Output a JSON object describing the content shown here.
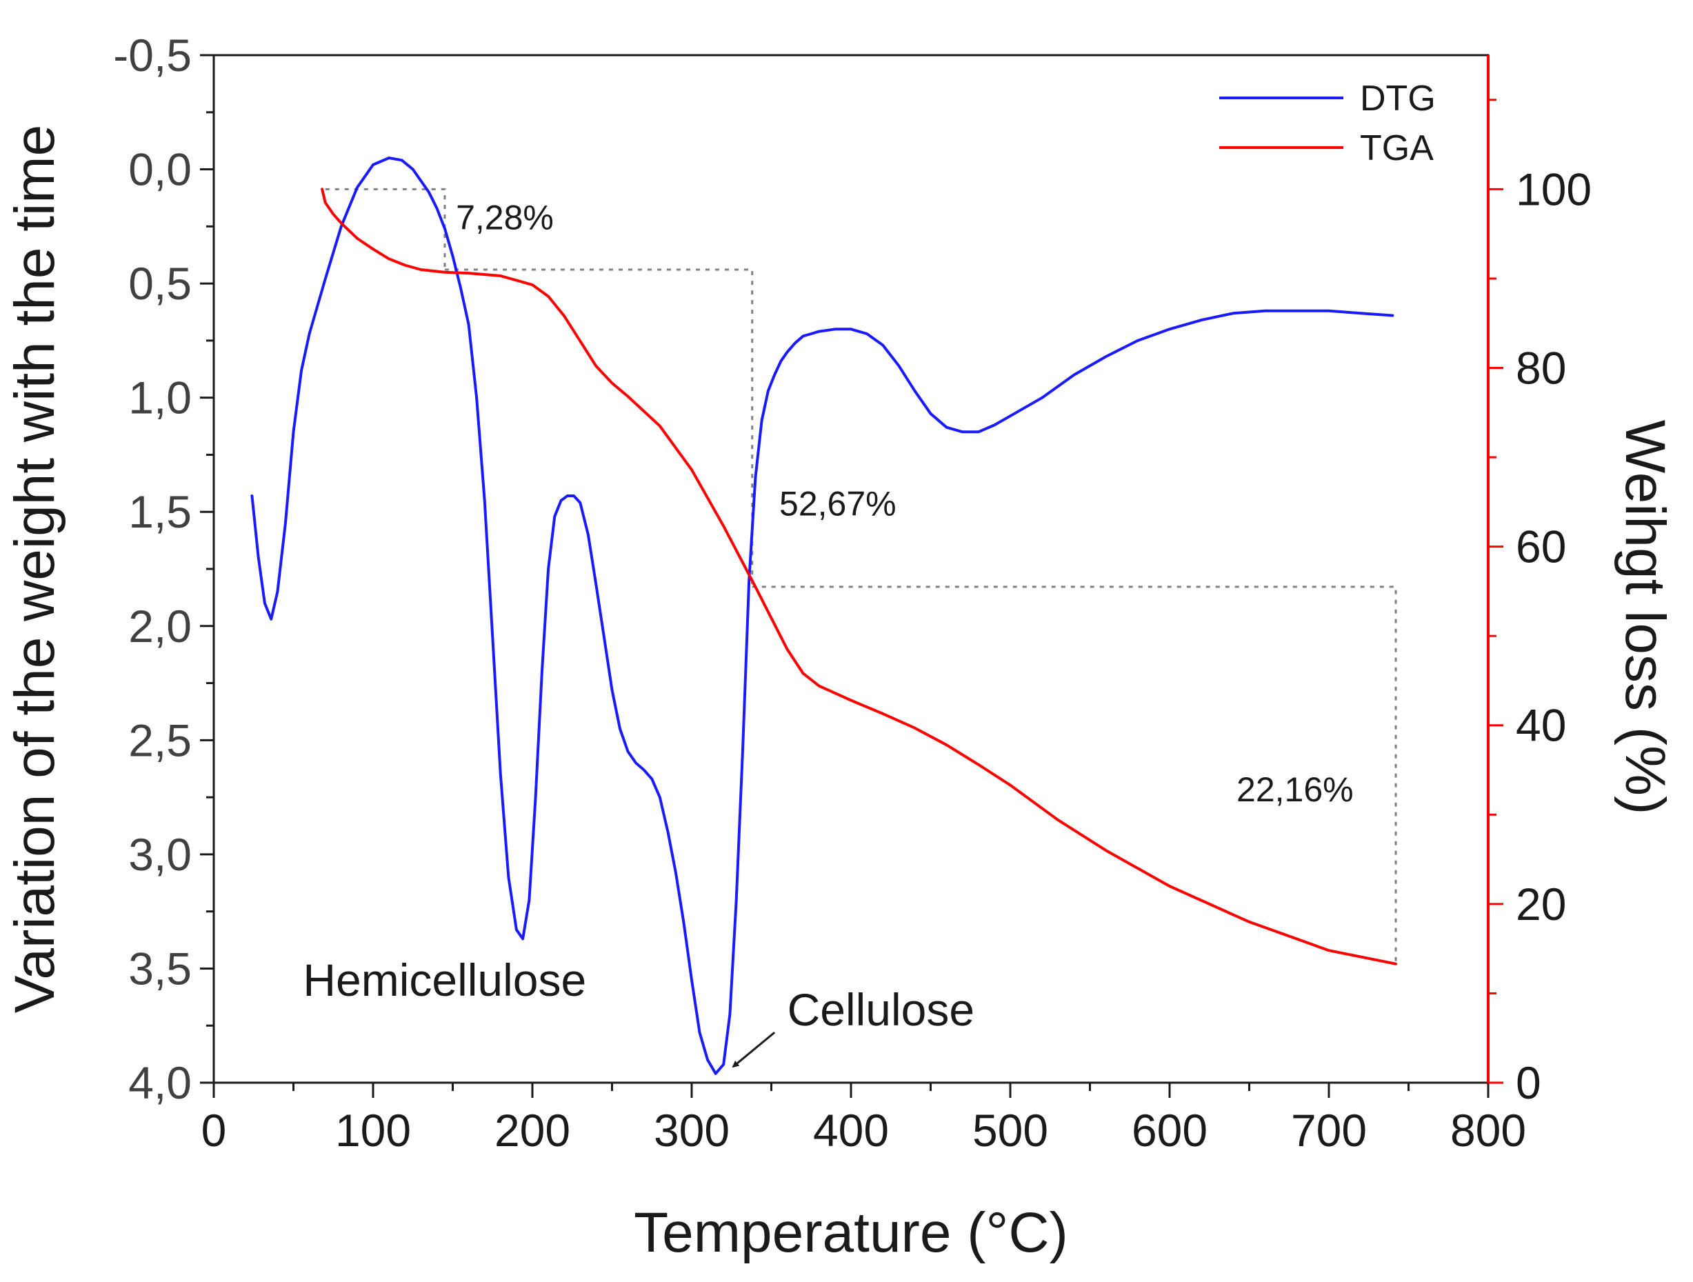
{
  "chart_data": {
    "type": "line",
    "xlabel": "Temperature (°C)",
    "ylabel_left": "Variation of the weight  with the time",
    "ylabel_right": "Weihgt loss (%)",
    "xlim": [
      0,
      800
    ],
    "ylim_left": [
      4.0,
      -0.5
    ],
    "ylim_right": [
      0,
      115
    ],
    "x_ticks": [
      0,
      100,
      200,
      300,
      400,
      500,
      600,
      700,
      800
    ],
    "x_tick_labels": [
      "0",
      "100",
      "200",
      "300",
      "400",
      "500",
      "600",
      "700",
      "800"
    ],
    "y_left_ticks": [
      -0.5,
      0.0,
      0.5,
      1.0,
      1.5,
      2.0,
      2.5,
      3.0,
      3.5,
      4.0
    ],
    "y_left_tick_labels": [
      "-0,5",
      "0,0",
      "0,5",
      "1,0",
      "1,5",
      "2,0",
      "2,5",
      "3,0",
      "3,5",
      "4,0"
    ],
    "y_right_ticks": [
      0,
      20,
      40,
      60,
      80,
      100
    ],
    "y_right_tick_labels": [
      "0",
      "20",
      "40",
      "60",
      "80",
      "100"
    ],
    "legend_position": "top-right",
    "series": [
      {
        "name": "DTG",
        "axis": "left",
        "color": "#1a1aff",
        "x": [
          24,
          28,
          32,
          36,
          40,
          45,
          50,
          55,
          60,
          70,
          80,
          90,
          100,
          110,
          118,
          125,
          130,
          135,
          140,
          145,
          150,
          155,
          160,
          165,
          170,
          175,
          180,
          185,
          190,
          194,
          198,
          202,
          206,
          210,
          214,
          218,
          222,
          226,
          230,
          235,
          240,
          245,
          250,
          255,
          260,
          265,
          270,
          275,
          280,
          285,
          290,
          295,
          300,
          305,
          310,
          315,
          320,
          324,
          328,
          332,
          336,
          340,
          344,
          348,
          352,
          356,
          360,
          365,
          370,
          375,
          380,
          390,
          400,
          410,
          420,
          430,
          440,
          450,
          460,
          470,
          480,
          490,
          500,
          520,
          540,
          560,
          580,
          600,
          620,
          640,
          660,
          680,
          700,
          720,
          740
        ],
        "y": [
          1.43,
          1.7,
          1.9,
          1.97,
          1.85,
          1.55,
          1.15,
          0.88,
          0.72,
          0.48,
          0.25,
          0.08,
          -0.02,
          -0.05,
          -0.04,
          0.0,
          0.05,
          0.1,
          0.17,
          0.26,
          0.38,
          0.52,
          0.68,
          1.0,
          1.45,
          2.05,
          2.65,
          3.1,
          3.33,
          3.37,
          3.2,
          2.75,
          2.2,
          1.75,
          1.52,
          1.45,
          1.43,
          1.43,
          1.46,
          1.6,
          1.82,
          2.05,
          2.28,
          2.45,
          2.55,
          2.6,
          2.63,
          2.67,
          2.75,
          2.9,
          3.08,
          3.3,
          3.55,
          3.78,
          3.9,
          3.96,
          3.92,
          3.7,
          3.2,
          2.55,
          1.8,
          1.35,
          1.1,
          0.97,
          0.9,
          0.84,
          0.8,
          0.76,
          0.73,
          0.72,
          0.71,
          0.7,
          0.7,
          0.72,
          0.77,
          0.86,
          0.97,
          1.07,
          1.13,
          1.15,
          1.15,
          1.12,
          1.08,
          1.0,
          0.9,
          0.82,
          0.75,
          0.7,
          0.66,
          0.63,
          0.62,
          0.62,
          0.62,
          0.63,
          0.64
        ]
      },
      {
        "name": "TGA",
        "axis": "right",
        "color": "#ff0000",
        "x": [
          68,
          70,
          75,
          80,
          90,
          100,
          110,
          120,
          130,
          145,
          160,
          180,
          200,
          210,
          220,
          230,
          240,
          250,
          260,
          280,
          300,
          320,
          340,
          350,
          360,
          370,
          380,
          400,
          420,
          440,
          460,
          480,
          500,
          530,
          560,
          600,
          650,
          700,
          742
        ],
        "y": [
          100.0,
          98.5,
          97.2,
          96.2,
          94.5,
          93.3,
          92.2,
          91.5,
          91.0,
          90.7,
          90.6,
          90.3,
          89.3,
          88.0,
          85.8,
          83.0,
          80.2,
          78.3,
          76.8,
          73.5,
          68.6,
          62.3,
          55.5,
          52.0,
          48.5,
          45.8,
          44.4,
          42.8,
          41.3,
          39.7,
          37.8,
          35.6,
          33.3,
          29.4,
          26.0,
          22.0,
          18.0,
          14.8,
          13.3
        ]
      }
    ],
    "guides": [
      {
        "points": [
          [
            70,
            100.0
          ],
          [
            145,
            100.0
          ],
          [
            145,
            91.0
          ]
        ]
      },
      {
        "points": [
          [
            145,
            91.0
          ],
          [
            338,
            91.0
          ],
          [
            338,
            55.5
          ]
        ]
      },
      {
        "points": [
          [
            338,
            55.5
          ],
          [
            742,
            55.5
          ],
          [
            742,
            13.3
          ]
        ]
      }
    ],
    "annotations": [
      {
        "text": "7,28%",
        "x": 152,
        "y_right": 95.5
      },
      {
        "text": "52,67%",
        "x": 355,
        "y_right": 63.5
      },
      {
        "text": "22,16%",
        "x": 642,
        "y_right": 31.5
      },
      {
        "text": "Hemicellulose",
        "x": 56,
        "y_left": 3.62
      },
      {
        "text": "Cellulose",
        "x": 360,
        "y_left": 3.75
      }
    ],
    "arrow": {
      "from": [
        352,
        3.78
      ],
      "to": [
        326,
        3.93
      ]
    }
  }
}
